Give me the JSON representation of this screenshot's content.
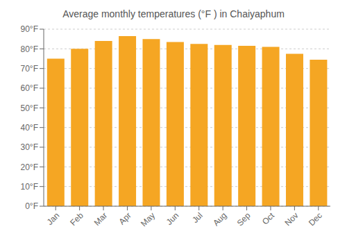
{
  "chart_data": {
    "type": "bar",
    "title": "Average monthly temperatures (°F ) in Chaiyaphum",
    "categories": [
      "Jan",
      "Feb",
      "Mar",
      "Apr",
      "May",
      "Jun",
      "Jul",
      "Aug",
      "Sep",
      "Oct",
      "Nov",
      "Dec"
    ],
    "values": [
      75,
      80,
      84,
      86.5,
      85,
      83.5,
      82.5,
      82,
      81.5,
      81,
      77.5,
      74.5
    ],
    "color": "#F5A623",
    "ylim": [
      0,
      90
    ],
    "yticks": [
      {
        "value": 0,
        "label": "0°F"
      },
      {
        "value": 10,
        "label": "10°F"
      },
      {
        "value": 20,
        "label": "20°F"
      },
      {
        "value": 30,
        "label": "30°F"
      },
      {
        "value": 40,
        "label": "40°F"
      },
      {
        "value": 50,
        "label": "50°F"
      },
      {
        "value": 60,
        "label": "60°F"
      },
      {
        "value": 70,
        "label": "70°F"
      },
      {
        "value": 80,
        "label": "80°F"
      },
      {
        "value": 90,
        "label": "90°F"
      }
    ],
    "grid": true
  }
}
